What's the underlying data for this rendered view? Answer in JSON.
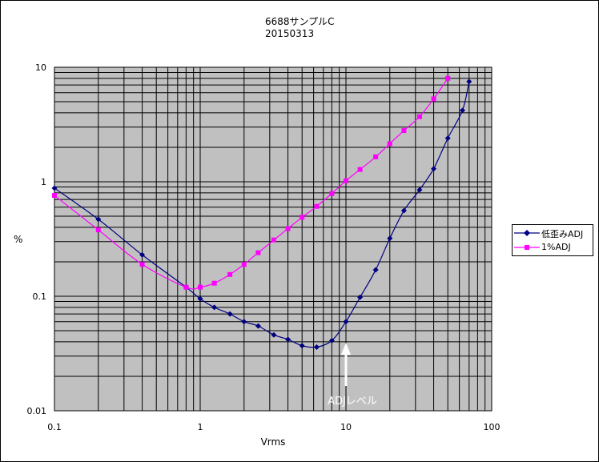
{
  "chart_data": {
    "type": "line",
    "title": "6688サンプルC",
    "subtitle": "20150313",
    "xlabel": "Vrms",
    "ylabel": "%",
    "xscale": "log",
    "yscale": "log",
    "xlim": [
      0.1,
      100
    ],
    "ylim": [
      0.01,
      10
    ],
    "x_tick_labels": [
      "0.1",
      "1",
      "10",
      "100"
    ],
    "y_tick_labels": [
      "0.01",
      "0.1",
      "1",
      "10"
    ],
    "grid": true,
    "legend_position": "right",
    "annotation": "ADJレベル",
    "annotation_x": 10,
    "plot_background": "#c0c0c0",
    "series": [
      {
        "name": "低歪みADJ",
        "color": "#000080",
        "marker": "diamond",
        "x": [
          0.1,
          0.2,
          0.4,
          0.8,
          1.0,
          1.25,
          1.6,
          2.0,
          2.5,
          3.2,
          4.0,
          5.0,
          6.3,
          8.0,
          10,
          12.5,
          16,
          20,
          25,
          32,
          40,
          50,
          63,
          70
        ],
        "y": [
          0.88,
          0.47,
          0.23,
          0.12,
          0.095,
          0.08,
          0.07,
          0.06,
          0.055,
          0.046,
          0.042,
          0.037,
          0.036,
          0.041,
          0.06,
          0.098,
          0.17,
          0.32,
          0.56,
          0.85,
          1.3,
          2.4,
          4.2,
          7.5
        ]
      },
      {
        "name": "1%ADJ",
        "color": "#ff00ff",
        "marker": "square",
        "x": [
          0.1,
          0.2,
          0.4,
          0.8,
          1.0,
          1.25,
          1.6,
          2.0,
          2.5,
          3.2,
          4.0,
          5.0,
          6.3,
          8.0,
          10,
          12.5,
          16,
          20,
          25,
          32,
          40,
          50
        ],
        "y": [
          0.76,
          0.38,
          0.19,
          0.12,
          0.12,
          0.13,
          0.155,
          0.19,
          0.24,
          0.31,
          0.39,
          0.49,
          0.61,
          0.79,
          1.02,
          1.28,
          1.65,
          2.15,
          2.8,
          3.7,
          5.3,
          8.0
        ]
      }
    ]
  }
}
